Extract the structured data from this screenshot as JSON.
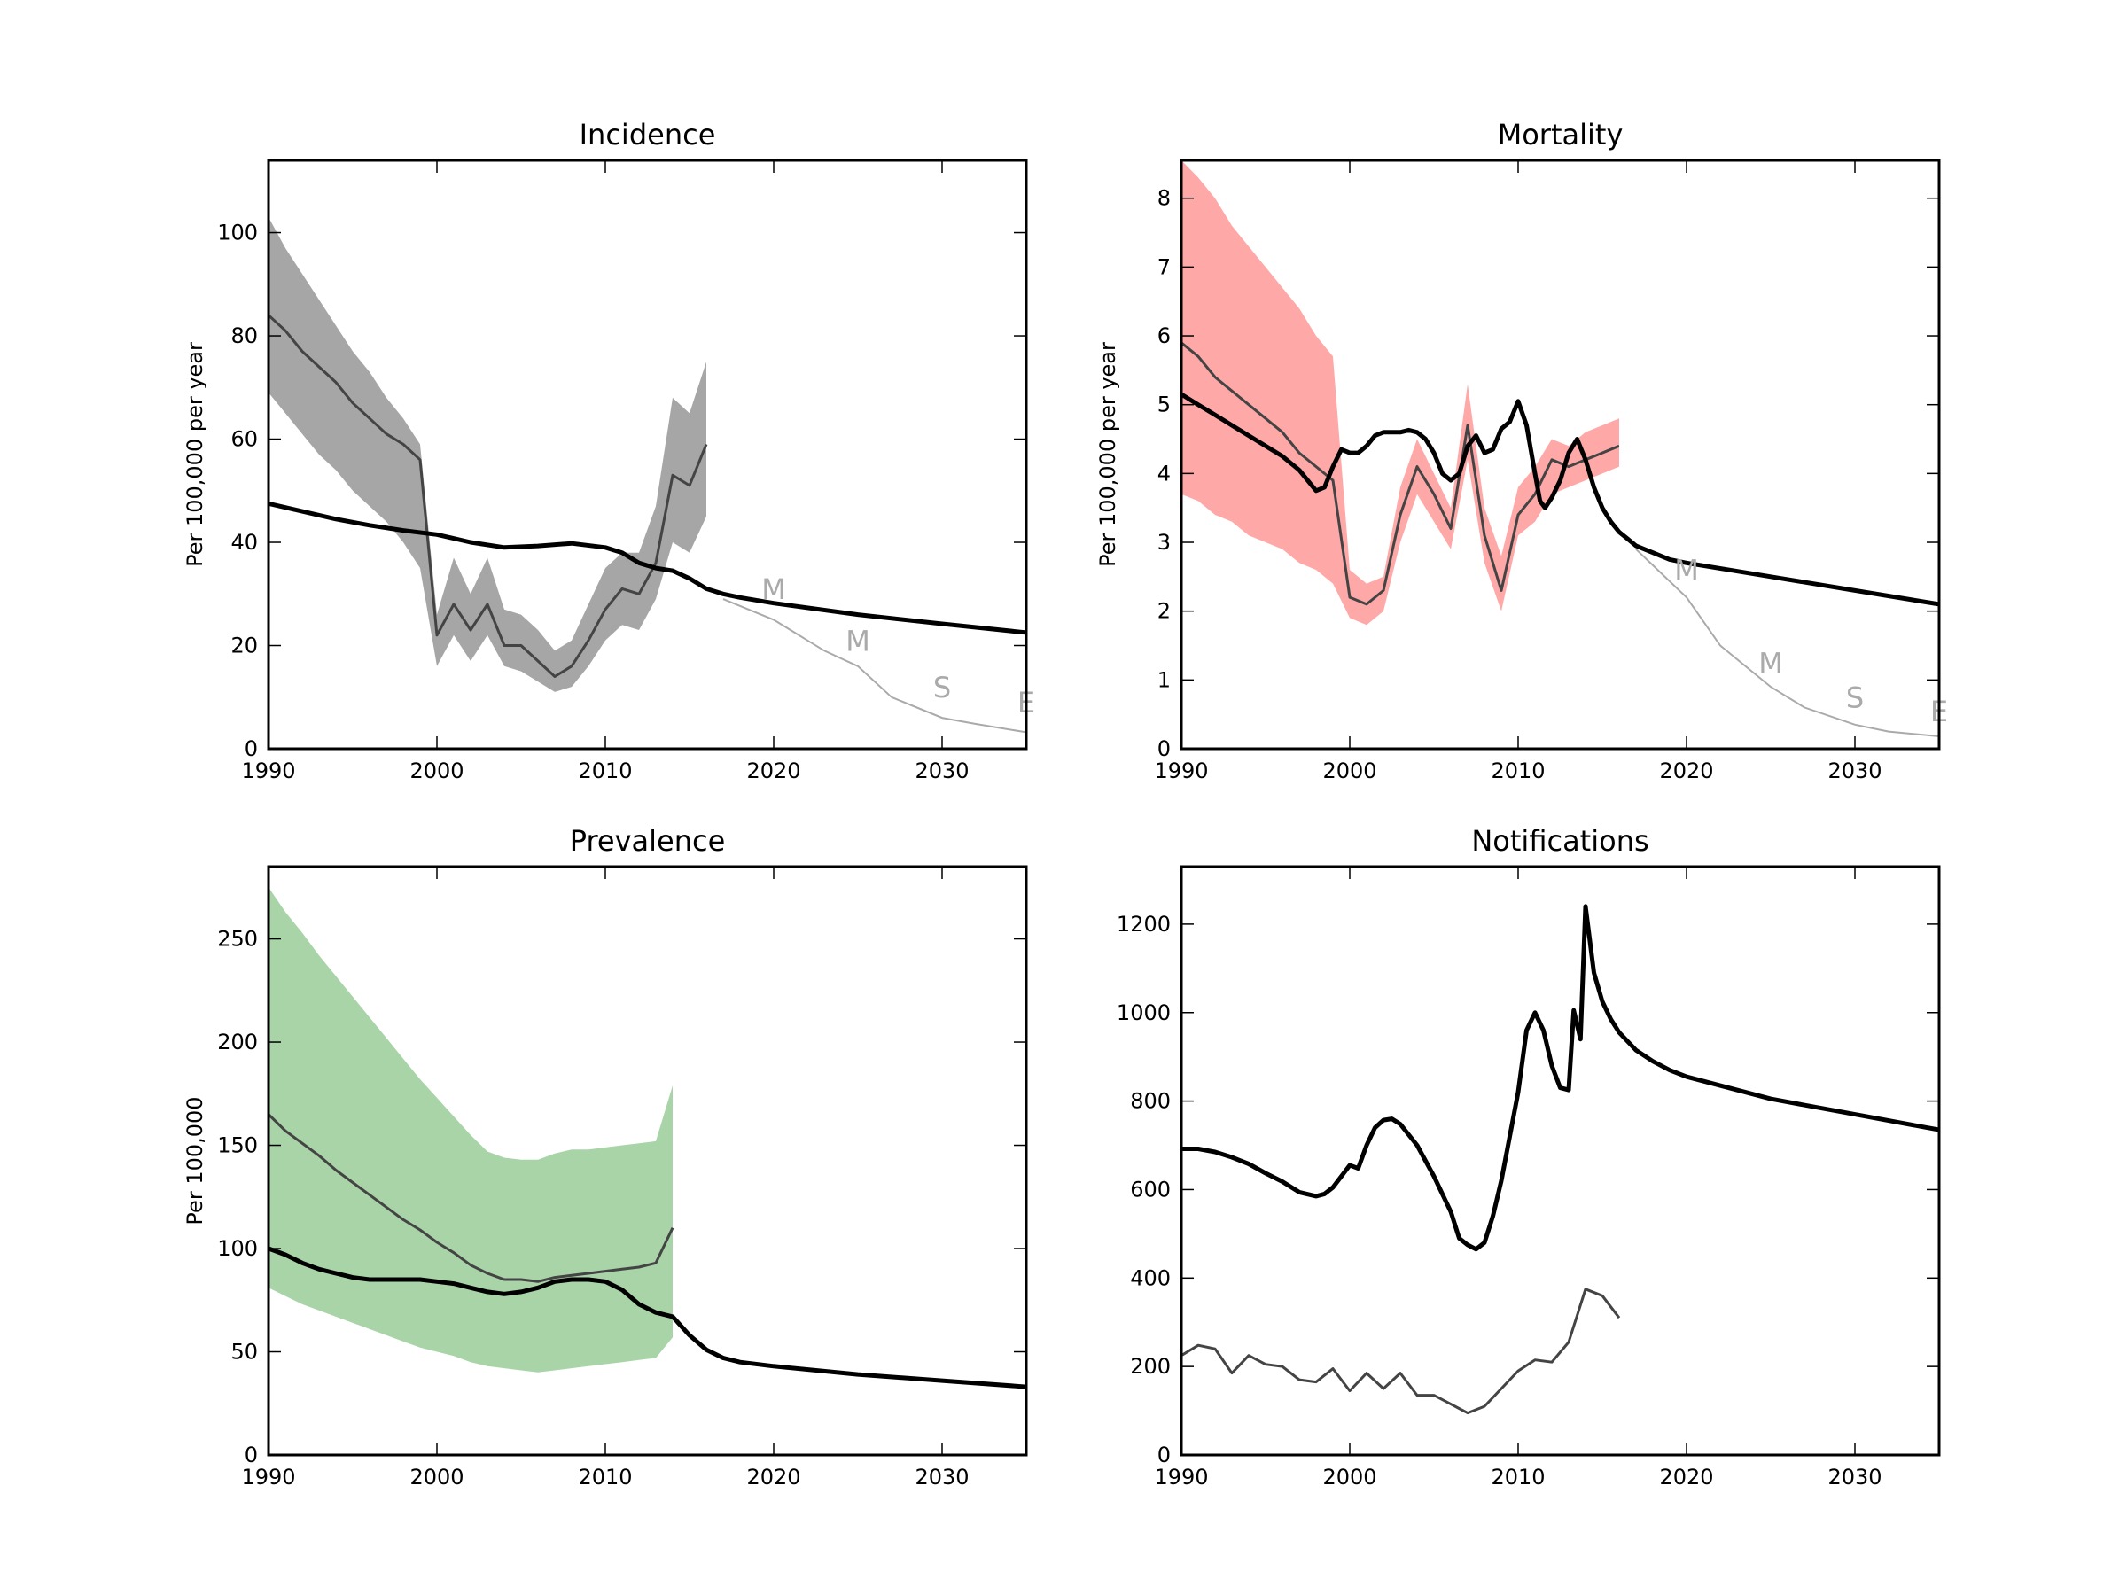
{
  "chart_data": [
    {
      "id": "incidence",
      "type": "line",
      "title": "Incidence",
      "ylabel": "Per 100,000 per year",
      "xlabel": "",
      "xlim": [
        1990,
        2035
      ],
      "ylim": [
        0,
        114
      ],
      "xticks": [
        1990,
        2000,
        2010,
        2020,
        2030
      ],
      "yticks": [
        0,
        20,
        40,
        60,
        80,
        100
      ],
      "band_color": "#a6a6a6",
      "band": {
        "x": [
          1990,
          1991,
          1992,
          1993,
          1994,
          1995,
          1996,
          1997,
          1998,
          1999,
          2000,
          2001,
          2002,
          2003,
          2004,
          2005,
          2006,
          2007,
          2008,
          2009,
          2010,
          2011,
          2012,
          2013,
          2014,
          2015,
          2016
        ],
        "upper": [
          103,
          97,
          92,
          87,
          82,
          77,
          73,
          68,
          64,
          59,
          26,
          37,
          30,
          37,
          27,
          26,
          23,
          19,
          21,
          28,
          35,
          38,
          38,
          47,
          68,
          65,
          75
        ],
        "lower": [
          69,
          65,
          61,
          57,
          54,
          50,
          47,
          44,
          40,
          35,
          16,
          22,
          17,
          22,
          16,
          15,
          13,
          11,
          12,
          16,
          21,
          24,
          23,
          29,
          40,
          38,
          45
        ]
      },
      "reported": {
        "name": "",
        "color": "#444444",
        "x": [
          1990,
          1991,
          1992,
          1993,
          1994,
          1995,
          1996,
          1997,
          1998,
          1999,
          2000,
          2001,
          2002,
          2003,
          2004,
          2005,
          2006,
          2007,
          2008,
          2009,
          2010,
          2011,
          2012,
          2013,
          2014,
          2015,
          2016
        ],
        "y": [
          84,
          81,
          77,
          74,
          71,
          67,
          64,
          61,
          59,
          56,
          22,
          28,
          23,
          28,
          20,
          20,
          17,
          14,
          16,
          21,
          27,
          31,
          30,
          36,
          53,
          51,
          59
        ]
      },
      "model": {
        "color": "#000000",
        "x": [
          1990,
          1992,
          1994,
          1996,
          1998,
          2000,
          2002,
          2004,
          2006,
          2008,
          2010,
          2011,
          2012,
          2013,
          2014,
          2015,
          2016,
          2017,
          2018,
          2020,
          2025,
          2030,
          2035
        ],
        "y": [
          47.5,
          46,
          44.5,
          43.3,
          42.3,
          41.5,
          40,
          39,
          39.3,
          39.8,
          39,
          38,
          36,
          35,
          34.5,
          33,
          31,
          30,
          29.3,
          28.2,
          26,
          24.2,
          22.5
        ]
      },
      "target": {
        "color": "#aaaaaa",
        "x": [
          2017,
          2020,
          2023,
          2025,
          2027,
          2030,
          2032,
          2035
        ],
        "y": [
          29,
          25,
          19,
          16,
          10,
          6,
          4.8,
          3.2
        ]
      },
      "target_labels": [
        {
          "text": "M",
          "x": 2020,
          "y": 29
        },
        {
          "text": "M",
          "x": 2025,
          "y": 19
        },
        {
          "text": "S",
          "x": 2030,
          "y": 10
        },
        {
          "text": "E",
          "x": 2035,
          "y": 7
        }
      ]
    },
    {
      "id": "mortality",
      "type": "line",
      "title": "Mortality",
      "ylabel": "Per 100,000 per year",
      "xlabel": "",
      "xlim": [
        1990,
        2035
      ],
      "ylim": [
        0,
        8.55
      ],
      "xticks": [
        1990,
        2000,
        2010,
        2020,
        2030
      ],
      "yticks": [
        0,
        1,
        2,
        3,
        4,
        5,
        6,
        7,
        8
      ],
      "band_color": "#ffa8a8",
      "band": {
        "x": [
          1990,
          1991,
          1992,
          1993,
          1994,
          1995,
          1996,
          1997,
          1998,
          1999,
          2000,
          2001,
          2002,
          2003,
          2004,
          2005,
          2006,
          2007,
          2008,
          2009,
          2010,
          2011,
          2012,
          2013,
          2014,
          2015,
          2016
        ],
        "upper": [
          8.55,
          8.3,
          8.0,
          7.6,
          7.3,
          7.0,
          6.7,
          6.4,
          6.0,
          5.7,
          2.6,
          2.4,
          2.5,
          3.8,
          4.5,
          4.0,
          3.5,
          5.3,
          3.5,
          2.8,
          3.8,
          4.1,
          4.5,
          4.4,
          4.6,
          4.7,
          4.8
        ],
        "lower": [
          3.7,
          3.6,
          3.4,
          3.3,
          3.1,
          3.0,
          2.9,
          2.7,
          2.6,
          2.4,
          1.9,
          1.8,
          2.0,
          3.0,
          3.7,
          3.3,
          2.9,
          4.2,
          2.7,
          2.0,
          3.1,
          3.3,
          3.7,
          3.8,
          3.9,
          4.0,
          4.1
        ]
      },
      "reported": {
        "name": "",
        "color": "#444444",
        "x": [
          1990,
          1991,
          1992,
          1993,
          1994,
          1995,
          1996,
          1997,
          1998,
          1999,
          2000,
          2001,
          2002,
          2003,
          2004,
          2005,
          2006,
          2007,
          2008,
          2009,
          2010,
          2011,
          2012,
          2013,
          2014,
          2015,
          2016
        ],
        "y": [
          5.9,
          5.7,
          5.4,
          5.2,
          5.0,
          4.8,
          4.6,
          4.3,
          4.1,
          3.9,
          2.2,
          2.1,
          2.3,
          3.4,
          4.1,
          3.7,
          3.2,
          4.7,
          3.1,
          2.3,
          3.4,
          3.7,
          4.2,
          4.1,
          4.2,
          4.3,
          4.4
        ]
      },
      "model": {
        "color": "#000000",
        "x": [
          1990,
          1991,
          1992,
          1993,
          1994,
          1995,
          1996,
          1997,
          1998,
          1998.5,
          1999,
          1999.5,
          2000,
          2000.5,
          2001,
          2001.5,
          2002,
          2003,
          2003.5,
          2004,
          2004.5,
          2005,
          2005.5,
          2006,
          2006.5,
          2007,
          2007.5,
          2008,
          2008.5,
          2009,
          2009.5,
          2010,
          2010.5,
          2011,
          2011.3,
          2011.6,
          2012,
          2012.5,
          2013,
          2013.5,
          2014,
          2014.5,
          2015,
          2015.5,
          2016,
          2016.5,
          2017,
          2018,
          2019,
          2020,
          2025,
          2030,
          2035
        ],
        "y": [
          5.15,
          5.0,
          4.85,
          4.7,
          4.55,
          4.4,
          4.25,
          4.05,
          3.75,
          3.8,
          4.1,
          4.35,
          4.3,
          4.3,
          4.4,
          4.55,
          4.6,
          4.6,
          4.63,
          4.6,
          4.5,
          4.3,
          4.0,
          3.9,
          4.0,
          4.4,
          4.55,
          4.3,
          4.35,
          4.65,
          4.75,
          5.05,
          4.7,
          4.0,
          3.6,
          3.5,
          3.65,
          3.9,
          4.3,
          4.5,
          4.2,
          3.8,
          3.5,
          3.3,
          3.15,
          3.05,
          2.95,
          2.85,
          2.75,
          2.7,
          2.5,
          2.3,
          2.1
        ]
      },
      "target": {
        "color": "#aaaaaa",
        "x": [
          2017,
          2020,
          2022,
          2025,
          2027,
          2030,
          2032,
          2035
        ],
        "y": [
          2.9,
          2.2,
          1.5,
          0.9,
          0.6,
          0.35,
          0.25,
          0.18
        ]
      },
      "target_labels": [
        {
          "text": "M",
          "x": 2020,
          "y": 2.45
        },
        {
          "text": "M",
          "x": 2025,
          "y": 1.1
        },
        {
          "text": "S",
          "x": 2030,
          "y": 0.6
        },
        {
          "text": "E",
          "x": 2035,
          "y": 0.4
        }
      ]
    },
    {
      "id": "prevalence",
      "type": "line",
      "title": "Prevalence",
      "ylabel": "Per 100,000",
      "xlabel": "",
      "xlim": [
        1990,
        2035
      ],
      "ylim": [
        0,
        285
      ],
      "xticks": [
        1990,
        2000,
        2010,
        2020,
        2030
      ],
      "yticks": [
        0,
        50,
        100,
        150,
        200,
        250
      ],
      "band_color": "#a8d4a8",
      "band": {
        "x": [
          1990,
          1991,
          1992,
          1993,
          1994,
          1995,
          1996,
          1997,
          1998,
          1999,
          2000,
          2001,
          2002,
          2003,
          2004,
          2005,
          2006,
          2007,
          2008,
          2009,
          2010,
          2011,
          2012,
          2013,
          2014
        ],
        "upper": [
          275,
          263,
          253,
          242,
          232,
          222,
          212,
          202,
          192,
          182,
          173,
          164,
          155,
          147,
          144,
          143,
          143,
          146,
          148,
          148,
          149,
          150,
          151,
          152,
          179
        ],
        "lower": [
          81,
          77,
          73,
          70,
          67,
          64,
          61,
          58,
          55,
          52,
          50,
          48,
          45,
          43,
          42,
          41,
          40,
          41,
          42,
          43,
          44,
          45,
          46,
          47,
          57
        ]
      },
      "reported": {
        "name": "",
        "color": "#444444",
        "x": [
          1990,
          1991,
          1992,
          1993,
          1994,
          1995,
          1996,
          1997,
          1998,
          1999,
          2000,
          2001,
          2002,
          2003,
          2004,
          2005,
          2006,
          2007,
          2008,
          2009,
          2010,
          2011,
          2012,
          2013,
          2014
        ],
        "y": [
          165,
          157,
          151,
          145,
          138,
          132,
          126,
          120,
          114,
          109,
          103,
          98,
          92,
          88,
          85,
          85,
          84,
          86,
          87,
          88,
          89,
          90,
          91,
          93,
          110
        ]
      },
      "model": {
        "color": "#000000",
        "x": [
          1990,
          1991,
          1992,
          1993,
          1994,
          1995,
          1996,
          1997,
          1998,
          1999,
          2000,
          2001,
          2002,
          2003,
          2004,
          2005,
          2006,
          2007,
          2008,
          2009,
          2010,
          2011,
          2012,
          2013,
          2014,
          2015,
          2016,
          2017,
          2018,
          2020,
          2025,
          2030,
          2035
        ],
        "y": [
          100,
          97,
          93,
          90,
          88,
          86,
          85,
          85,
          85,
          85,
          84,
          83,
          81,
          79,
          78,
          79,
          81,
          84,
          85,
          85,
          84,
          80,
          73,
          69,
          67,
          58,
          51,
          47,
          45,
          43,
          39,
          36,
          33
        ]
      },
      "target": null,
      "target_labels": []
    },
    {
      "id": "notifications",
      "type": "line",
      "title": "Notifications",
      "ylabel": "",
      "xlabel": "",
      "xlim": [
        1990,
        2035
      ],
      "ylim": [
        0,
        1330
      ],
      "xticks": [
        1990,
        2000,
        2010,
        2020,
        2030
      ],
      "yticks": [
        0,
        200,
        400,
        600,
        800,
        1000,
        1200
      ],
      "band_color": "",
      "band": null,
      "reported": {
        "name": "",
        "color": "#444444",
        "x": [
          1990,
          1991,
          1992,
          1993,
          1994,
          1995,
          1996,
          1997,
          1998,
          1999,
          2000,
          2001,
          2002,
          2003,
          2004,
          2005,
          2006,
          2007,
          2008,
          2009,
          2010,
          2011,
          2012,
          2013,
          2014,
          2015,
          2016
        ],
        "y": [
          225,
          248,
          240,
          185,
          225,
          205,
          200,
          170,
          165,
          195,
          145,
          185,
          150,
          185,
          135,
          135,
          115,
          95,
          110,
          150,
          190,
          215,
          210,
          255,
          375,
          360,
          310
        ]
      },
      "model": {
        "color": "#000000",
        "x": [
          1990,
          1991,
          1992,
          1993,
          1994,
          1995,
          1996,
          1997,
          1998,
          1998.5,
          1999,
          1999.5,
          2000,
          2000.5,
          2001,
          2001.5,
          2002,
          2002.5,
          2003,
          2004,
          2005,
          2006,
          2006.5,
          2007,
          2007.5,
          2008,
          2008.5,
          2009,
          2009.5,
          2010,
          2010.5,
          2011,
          2011.5,
          2012,
          2012.5,
          2013,
          2013.3,
          2013.7,
          2014,
          2014.5,
          2015,
          2015.5,
          2016,
          2016.5,
          2017,
          2018,
          2019,
          2020,
          2025,
          2030,
          2035
        ],
        "y": [
          692,
          692,
          685,
          673,
          658,
          637,
          618,
          594,
          585,
          590,
          605,
          630,
          655,
          648,
          700,
          740,
          757,
          760,
          748,
          700,
          630,
          550,
          490,
          475,
          465,
          480,
          540,
          620,
          720,
          820,
          960,
          1000,
          960,
          880,
          830,
          825,
          1005,
          940,
          1240,
          1090,
          1025,
          985,
          955,
          935,
          915,
          890,
          870,
          855,
          805,
          770,
          735
        ]
      },
      "target": null,
      "target_labels": []
    }
  ]
}
